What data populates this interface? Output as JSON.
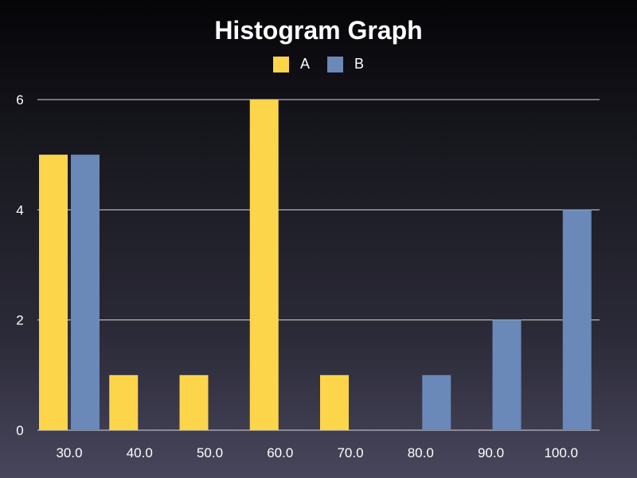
{
  "chart_data": {
    "type": "bar",
    "title": "Histogram Graph",
    "xlabel": "",
    "ylabel": "",
    "categories": [
      "30.0",
      "40.0",
      "50.0",
      "60.0",
      "70.0",
      "80.0",
      "90.0",
      "100.0"
    ],
    "series": [
      {
        "name": "A",
        "color": "#fdd54a",
        "values": [
          5,
          1,
          1,
          6,
          1,
          0,
          0,
          0
        ]
      },
      {
        "name": "B",
        "color": "#6a88b8",
        "values": [
          5,
          0,
          0,
          0,
          0,
          1,
          2,
          4
        ]
      }
    ],
    "ylim": [
      0,
      6
    ],
    "yticks": [
      "0",
      "2",
      "4",
      "6"
    ],
    "grid": true,
    "legend_position": "top-center"
  }
}
